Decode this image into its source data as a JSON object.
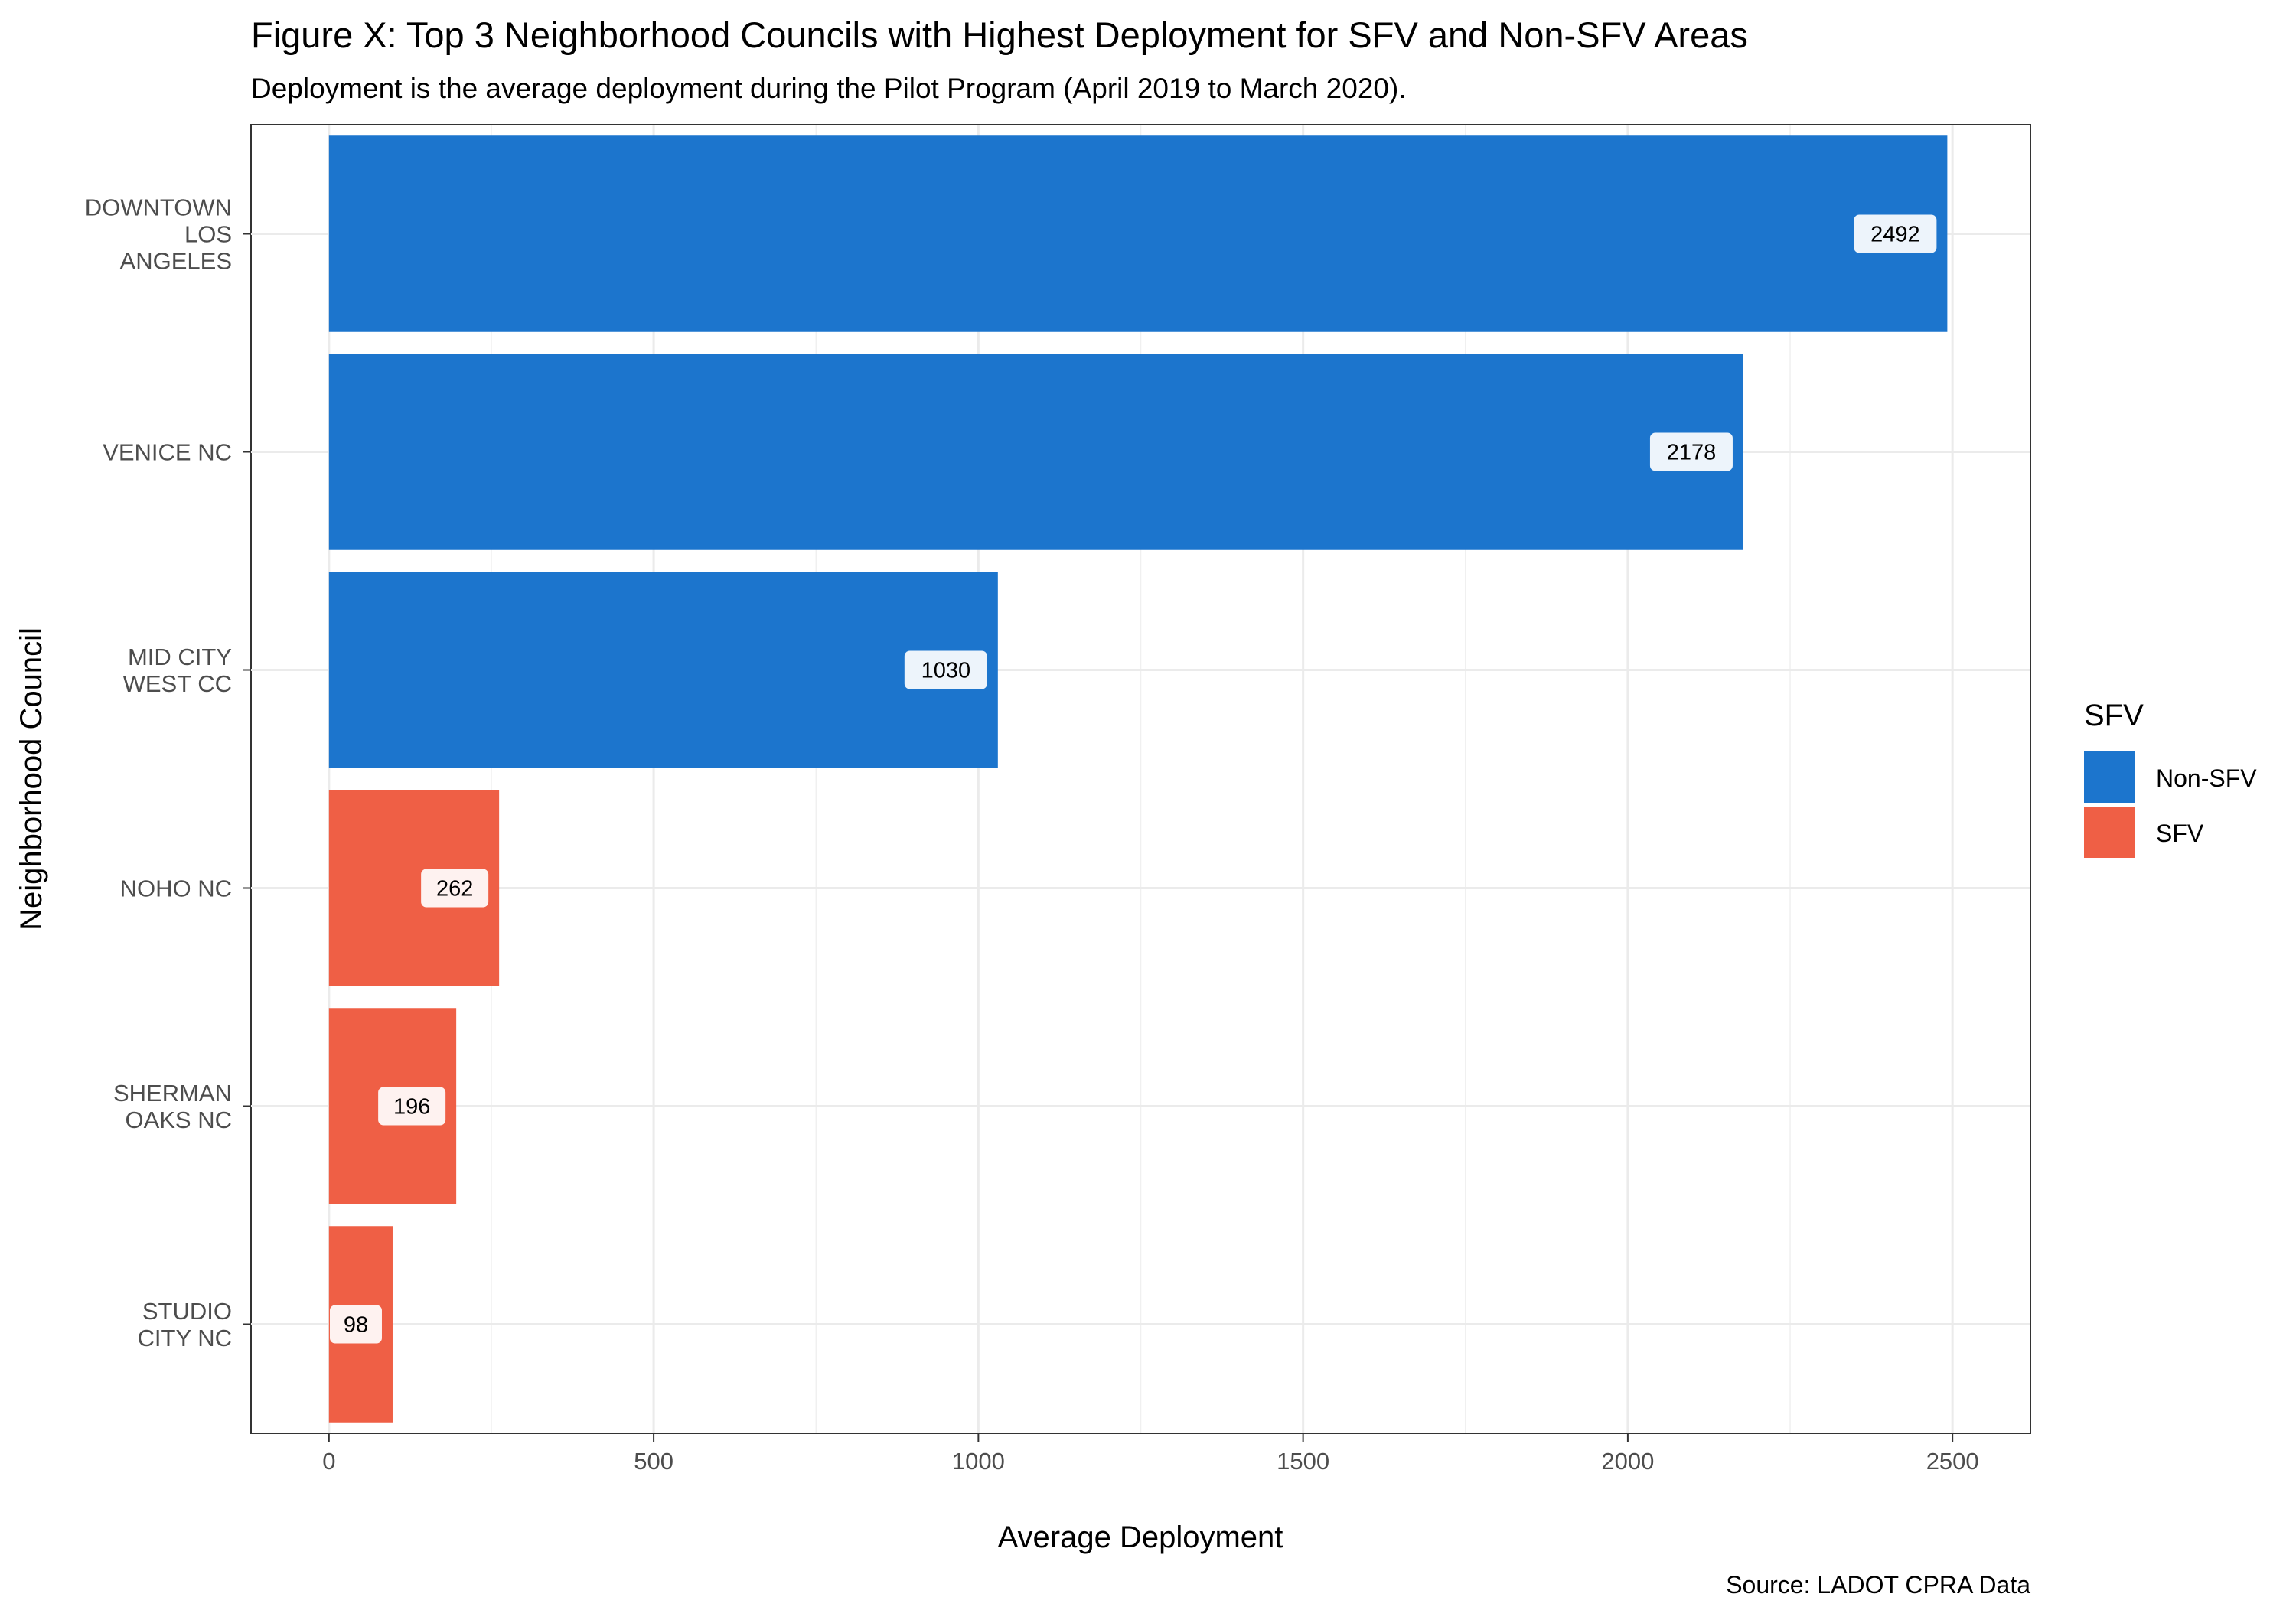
{
  "chart_data": {
    "type": "bar",
    "orientation": "horizontal",
    "title": "Figure X: Top 3 Neighborhood Councils with Highest  Deployment for SFV and Non-SFV Areas",
    "subtitle": "Deployment is the average deployment during the Pilot Program (April 2019 to March 2020).",
    "xlabel": "Average Deployment",
    "ylabel": "Neighborhood Council",
    "caption": "Source: LADOT CPRA Data",
    "xlim": [
      -120,
      2620
    ],
    "xticks": [
      0,
      500,
      1000,
      1500,
      2000,
      2500
    ],
    "xtick_labels": [
      "0",
      "500",
      "1000",
      "1500",
      "2000",
      "2500"
    ],
    "grid": true,
    "legend": {
      "title": "SFV",
      "position": "right",
      "entries": [
        {
          "label": "Non-SFV",
          "color": "#1c75cd"
        },
        {
          "label": "SFV",
          "color": "#ef5f45"
        }
      ]
    },
    "bars": [
      {
        "lines": [
          "DOWNTOWN",
          "LOS",
          "ANGELES"
        ],
        "value": 2492,
        "label": "2492",
        "group": "Non-SFV"
      },
      {
        "lines": [
          "VENICE NC"
        ],
        "value": 2178,
        "label": "2178",
        "group": "Non-SFV"
      },
      {
        "lines": [
          "MID CITY",
          "WEST CC"
        ],
        "value": 1030,
        "label": "1030",
        "group": "Non-SFV"
      },
      {
        "lines": [
          "NOHO NC"
        ],
        "value": 262,
        "label": "262",
        "group": "SFV"
      },
      {
        "lines": [
          "SHERMAN",
          "OAKS NC"
        ],
        "value": 196,
        "label": "196",
        "group": "SFV"
      },
      {
        "lines": [
          "STUDIO",
          "CITY NC"
        ],
        "value": 98,
        "label": "98",
        "group": "SFV"
      }
    ]
  }
}
